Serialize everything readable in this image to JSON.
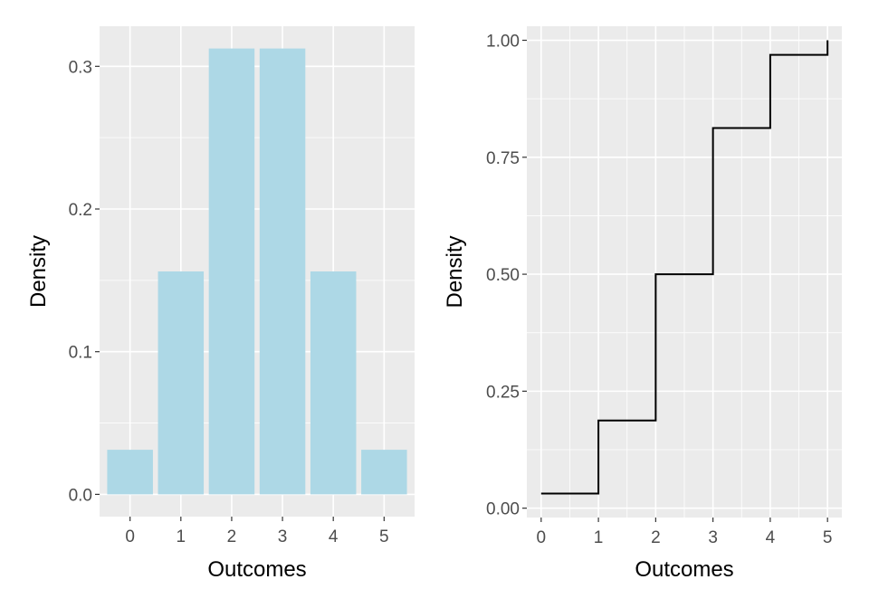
{
  "chart_data": [
    {
      "type": "bar",
      "xlabel": "Outcomes",
      "ylabel": "Density",
      "categories": [
        "0",
        "1",
        "2",
        "3",
        "4",
        "5"
      ],
      "values": [
        0.03125,
        0.15625,
        0.3125,
        0.3125,
        0.15625,
        0.03125
      ],
      "ylim": [
        -0.0156,
        0.3281
      ],
      "yticks": [
        "0.0",
        "0.1",
        "0.2",
        "0.3"
      ],
      "ytick_values": [
        0,
        0.1,
        0.2,
        0.3
      ],
      "bar_color": "#add8e6",
      "grid": true
    },
    {
      "type": "line",
      "step": true,
      "xlabel": "Outcomes",
      "ylabel": "Density",
      "x": [
        0,
        1,
        2,
        3,
        4,
        5
      ],
      "y": [
        0.03125,
        0.1875,
        0.5,
        0.8125,
        0.96875,
        1.0
      ],
      "xlim": [
        -0.25,
        5.25
      ],
      "ylim": [
        -0.02,
        1.03
      ],
      "xticks": [
        "0",
        "1",
        "2",
        "3",
        "4",
        "5"
      ],
      "xtick_values": [
        0,
        1,
        2,
        3,
        4,
        5
      ],
      "yticks": [
        "0.00",
        "0.25",
        "0.50",
        "0.75",
        "1.00"
      ],
      "ytick_values": [
        0,
        0.25,
        0.5,
        0.75,
        1.0
      ],
      "line_color": "#000000",
      "grid": true
    }
  ]
}
